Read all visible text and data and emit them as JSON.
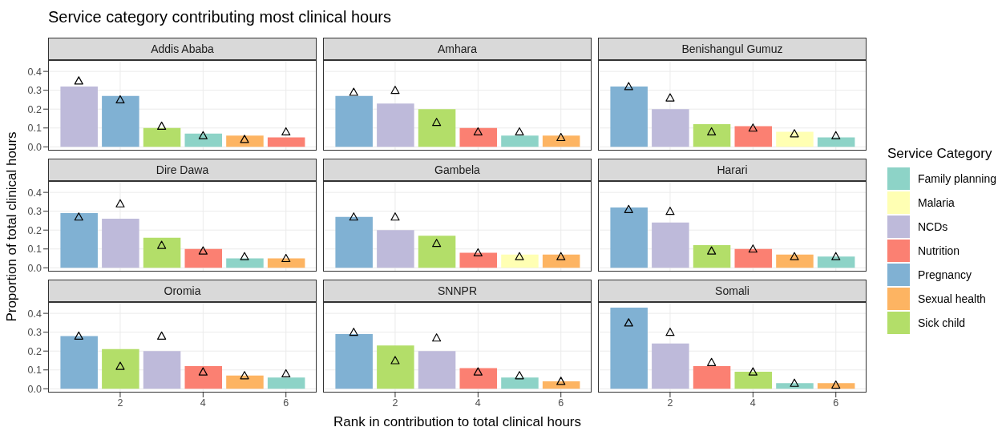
{
  "chart_data": [
    {
      "type": "bar",
      "title": "Service category contributing most clinical hours",
      "subtitle": "Addis Ababa",
      "stacked": true,
      "x": [
        1,
        2,
        3,
        4,
        5,
        6
      ],
      "xlim": [
        0.26,
        6.74
      ],
      "xticks": [
        2,
        4,
        6
      ],
      "ylim": [
        -0.02,
        0.46
      ],
      "yticks": [
        {
          "value": 0,
          "label": "0.0"
        },
        {
          "value": 0.1,
          "label": "0.1"
        },
        {
          "value": 0.2,
          "label": "0.2"
        },
        {
          "value": 0.3,
          "label": "0.3"
        },
        {
          "value": 0.4,
          "label": "0.4"
        }
      ],
      "grid": true,
      "tick_labels": "y",
      "series": [
        {
          "color": "#8dd3c7",
          "values": [
            null,
            null,
            null,
            0.07,
            null,
            null
          ]
        },
        {
          "color": "#ffffb3",
          "values": [
            null,
            null,
            null,
            null,
            null,
            null
          ]
        },
        {
          "color": "#bebada",
          "values": [
            0.32,
            null,
            null,
            null,
            null,
            null
          ]
        },
        {
          "color": "#fb8072",
          "values": [
            null,
            null,
            null,
            null,
            null,
            0.05
          ]
        },
        {
          "color": "#80b1d3",
          "values": [
            null,
            0.27,
            null,
            null,
            null,
            null
          ]
        },
        {
          "color": "#fdb462",
          "values": [
            null,
            null,
            null,
            null,
            0.06,
            null
          ]
        },
        {
          "color": "#b3de69",
          "values": [
            null,
            null,
            0.1,
            null,
            null,
            null
          ]
        },
        {
          "type": "scatter",
          "color": "#000000",
          "marker": "triangle",
          "values": [
            0.35,
            0.25,
            0.11,
            0.06,
            0.04,
            0.08
          ]
        }
      ]
    },
    {
      "type": "bar",
      "subtitle": "Amhara",
      "stacked": true,
      "x": [
        1,
        2,
        3,
        4,
        5,
        6
      ],
      "xlim": [
        0.26,
        6.74
      ],
      "xticks": [
        2,
        4,
        6
      ],
      "ylim": [
        -0.02,
        0.46
      ],
      "yticks": [
        {
          "value": 0,
          "label": null
        },
        {
          "value": 0.1,
          "label": null
        },
        {
          "value": 0.2,
          "label": null
        },
        {
          "value": 0.3,
          "label": null
        },
        {
          "value": 0.4,
          "label": null
        }
      ],
      "grid": true,
      "tick_labels": false,
      "series": [
        {
          "color": "#8dd3c7",
          "values": [
            null,
            null,
            null,
            null,
            0.06,
            null
          ]
        },
        {
          "color": "#ffffb3",
          "values": [
            null,
            null,
            null,
            null,
            null,
            null
          ]
        },
        {
          "color": "#bebada",
          "values": [
            null,
            0.23,
            null,
            null,
            null,
            null
          ]
        },
        {
          "color": "#fb8072",
          "values": [
            null,
            null,
            null,
            0.1,
            null,
            null
          ]
        },
        {
          "color": "#80b1d3",
          "values": [
            0.27,
            null,
            null,
            null,
            null,
            null
          ]
        },
        {
          "color": "#fdb462",
          "values": [
            null,
            null,
            null,
            null,
            null,
            0.06
          ]
        },
        {
          "color": "#b3de69",
          "values": [
            null,
            null,
            0.2,
            null,
            null,
            null
          ]
        },
        {
          "type": "scatter",
          "color": "#000000",
          "marker": "triangle",
          "values": [
            0.29,
            0.3,
            0.13,
            0.08,
            0.08,
            0.05
          ]
        }
      ]
    },
    {
      "type": "bar",
      "subtitle": "Benishangul Gumuz",
      "stacked": true,
      "x": [
        1,
        2,
        3,
        4,
        5,
        6
      ],
      "xlim": [
        0.26,
        6.74
      ],
      "xticks": [
        2,
        4,
        6
      ],
      "ylim": [
        -0.02,
        0.46
      ],
      "yticks": [
        {
          "value": 0,
          "label": null
        },
        {
          "value": 0.1,
          "label": null
        },
        {
          "value": 0.2,
          "label": null
        },
        {
          "value": 0.3,
          "label": null
        },
        {
          "value": 0.4,
          "label": null
        }
      ],
      "grid": true,
      "tick_labels": false,
      "series": [
        {
          "color": "#8dd3c7",
          "values": [
            null,
            null,
            null,
            null,
            null,
            0.05
          ]
        },
        {
          "color": "#ffffb3",
          "values": [
            null,
            null,
            null,
            null,
            0.08,
            null
          ]
        },
        {
          "color": "#bebada",
          "values": [
            null,
            0.2,
            null,
            null,
            null,
            null
          ]
        },
        {
          "color": "#fb8072",
          "values": [
            null,
            null,
            null,
            0.11,
            null,
            null
          ]
        },
        {
          "color": "#80b1d3",
          "values": [
            0.32,
            null,
            null,
            null,
            null,
            null
          ]
        },
        {
          "color": "#fdb462",
          "values": [
            null,
            null,
            null,
            null,
            null,
            null
          ]
        },
        {
          "color": "#b3de69",
          "values": [
            null,
            null,
            0.12,
            null,
            null,
            null
          ]
        },
        {
          "type": "scatter",
          "color": "#000000",
          "marker": "triangle",
          "values": [
            0.32,
            0.26,
            0.08,
            0.1,
            0.07,
            0.06
          ]
        }
      ]
    },
    {
      "type": "bar",
      "subtitle": "Dire Dawa",
      "ylabel": "Proportion of total clinical hours",
      "stacked": true,
      "x": [
        1,
        2,
        3,
        4,
        5,
        6
      ],
      "xlim": [
        0.26,
        6.74
      ],
      "xticks": [
        2,
        4,
        6
      ],
      "ylim": [
        -0.02,
        0.46
      ],
      "yticks": [
        {
          "value": 0,
          "label": "0.0"
        },
        {
          "value": 0.1,
          "label": "0.1"
        },
        {
          "value": 0.2,
          "label": "0.2"
        },
        {
          "value": 0.3,
          "label": "0.3"
        },
        {
          "value": 0.4,
          "label": "0.4"
        }
      ],
      "grid": true,
      "tick_labels": "y",
      "series": [
        {
          "color": "#8dd3c7",
          "values": [
            null,
            null,
            null,
            null,
            0.05,
            null
          ]
        },
        {
          "color": "#ffffb3",
          "values": [
            null,
            null,
            null,
            null,
            null,
            null
          ]
        },
        {
          "color": "#bebada",
          "values": [
            null,
            0.26,
            null,
            null,
            null,
            null
          ]
        },
        {
          "color": "#fb8072",
          "values": [
            null,
            null,
            null,
            0.1,
            null,
            null
          ]
        },
        {
          "color": "#80b1d3",
          "values": [
            0.29,
            null,
            null,
            null,
            null,
            null
          ]
        },
        {
          "color": "#fdb462",
          "values": [
            null,
            null,
            null,
            null,
            null,
            0.05
          ]
        },
        {
          "color": "#b3de69",
          "values": [
            null,
            null,
            0.16,
            null,
            null,
            null
          ]
        },
        {
          "type": "scatter",
          "color": "#000000",
          "marker": "triangle",
          "values": [
            0.27,
            0.34,
            0.12,
            0.09,
            0.06,
            0.05
          ]
        }
      ]
    },
    {
      "type": "bar",
      "subtitle": "Gambela",
      "stacked": true,
      "x": [
        1,
        2,
        3,
        4,
        5,
        6
      ],
      "xlim": [
        0.26,
        6.74
      ],
      "xticks": [
        2,
        4,
        6
      ],
      "ylim": [
        -0.02,
        0.46
      ],
      "yticks": [
        {
          "value": 0,
          "label": null
        },
        {
          "value": 0.1,
          "label": null
        },
        {
          "value": 0.2,
          "label": null
        },
        {
          "value": 0.3,
          "label": null
        },
        {
          "value": 0.4,
          "label": null
        }
      ],
      "grid": true,
      "tick_labels": false,
      "series": [
        {
          "color": "#8dd3c7",
          "values": [
            null,
            null,
            null,
            null,
            null,
            null
          ]
        },
        {
          "color": "#ffffb3",
          "values": [
            null,
            null,
            null,
            null,
            0.07,
            null
          ]
        },
        {
          "color": "#bebada",
          "values": [
            null,
            0.2,
            null,
            null,
            null,
            null
          ]
        },
        {
          "color": "#fb8072",
          "values": [
            null,
            null,
            null,
            0.08,
            null,
            null
          ]
        },
        {
          "color": "#80b1d3",
          "values": [
            0.27,
            null,
            null,
            null,
            null,
            null
          ]
        },
        {
          "color": "#fdb462",
          "values": [
            null,
            null,
            null,
            null,
            null,
            0.07
          ]
        },
        {
          "color": "#b3de69",
          "values": [
            null,
            null,
            0.17,
            null,
            null,
            null
          ]
        },
        {
          "type": "scatter",
          "color": "#000000",
          "marker": "triangle",
          "values": [
            0.27,
            0.27,
            0.13,
            0.08,
            0.06,
            0.06
          ]
        }
      ]
    },
    {
      "type": "bar",
      "subtitle": "Harari",
      "legend": "right",
      "legend_title": "Service Category",
      "stacked": true,
      "x": [
        1,
        2,
        3,
        4,
        5,
        6
      ],
      "xlim": [
        0.26,
        6.74
      ],
      "xticks": [
        2,
        4,
        6
      ],
      "ylim": [
        -0.02,
        0.46
      ],
      "yticks": [
        {
          "value": 0,
          "label": null
        },
        {
          "value": 0.1,
          "label": null
        },
        {
          "value": 0.2,
          "label": null
        },
        {
          "value": 0.3,
          "label": null
        },
        {
          "value": 0.4,
          "label": null
        }
      ],
      "grid": true,
      "tick_labels": false,
      "series": [
        {
          "name": "Family planning",
          "color": "#8dd3c7",
          "values": [
            null,
            null,
            null,
            null,
            null,
            0.06
          ]
        },
        {
          "name": "Malaria",
          "color": "#ffffb3",
          "values": [
            null,
            null,
            null,
            null,
            null,
            null
          ]
        },
        {
          "name": "NCDs",
          "color": "#bebada",
          "values": [
            null,
            0.24,
            null,
            null,
            null,
            null
          ]
        },
        {
          "name": "Nutrition",
          "color": "#fb8072",
          "values": [
            null,
            null,
            null,
            0.1,
            null,
            null
          ]
        },
        {
          "name": "Pregnancy",
          "color": "#80b1d3",
          "values": [
            0.32,
            null,
            null,
            null,
            null,
            null
          ]
        },
        {
          "name": "Sexual health",
          "color": "#fdb462",
          "values": [
            null,
            null,
            null,
            null,
            0.07,
            null
          ]
        },
        {
          "name": "Sick child",
          "color": "#b3de69",
          "values": [
            null,
            null,
            0.12,
            null,
            null,
            null
          ]
        },
        {
          "type": "scatter",
          "color": "#000000",
          "marker": "triangle",
          "values": [
            0.31,
            0.3,
            0.09,
            0.1,
            0.06,
            0.06
          ]
        }
      ]
    },
    {
      "type": "bar",
      "subtitle": "Oromia",
      "stacked": true,
      "x": [
        1,
        2,
        3,
        4,
        5,
        6
      ],
      "xlim": [
        0.26,
        6.74
      ],
      "xticks": [
        2,
        4,
        6
      ],
      "ylim": [
        -0.02,
        0.46
      ],
      "yticks": [
        {
          "value": 0,
          "label": "0.0"
        },
        {
          "value": 0.1,
          "label": "0.1"
        },
        {
          "value": 0.2,
          "label": "0.2"
        },
        {
          "value": 0.3,
          "label": "0.3"
        },
        {
          "value": 0.4,
          "label": "0.4"
        }
      ],
      "grid": true,
      "series": [
        {
          "color": "#8dd3c7",
          "values": [
            null,
            null,
            null,
            null,
            null,
            0.06
          ]
        },
        {
          "color": "#ffffb3",
          "values": [
            null,
            null,
            null,
            null,
            null,
            null
          ]
        },
        {
          "color": "#bebada",
          "values": [
            null,
            null,
            0.2,
            null,
            null,
            null
          ]
        },
        {
          "color": "#fb8072",
          "values": [
            null,
            null,
            null,
            0.12,
            null,
            null
          ]
        },
        {
          "color": "#80b1d3",
          "values": [
            0.28,
            null,
            null,
            null,
            null,
            null
          ]
        },
        {
          "color": "#fdb462",
          "values": [
            null,
            null,
            null,
            null,
            0.07,
            null
          ]
        },
        {
          "color": "#b3de69",
          "values": [
            null,
            0.21,
            null,
            null,
            null,
            null
          ]
        },
        {
          "type": "scatter",
          "color": "#000000",
          "marker": "triangle",
          "values": [
            0.28,
            0.12,
            0.28,
            0.09,
            0.07,
            0.08
          ]
        }
      ]
    },
    {
      "type": "bar",
      "subtitle": "SNNPR",
      "xlabel": "Rank in contribution to total clinical hours",
      "stacked": true,
      "x": [
        1,
        2,
        3,
        4,
        5,
        6
      ],
      "xlim": [
        0.26,
        6.74
      ],
      "xticks": [
        2,
        4,
        6
      ],
      "ylim": [
        -0.02,
        0.46
      ],
      "yticks": [
        {
          "value": 0,
          "label": null
        },
        {
          "value": 0.1,
          "label": null
        },
        {
          "value": 0.2,
          "label": null
        },
        {
          "value": 0.3,
          "label": null
        },
        {
          "value": 0.4,
          "label": null
        }
      ],
      "grid": true,
      "tick_labels": "x",
      "series": [
        {
          "color": "#8dd3c7",
          "values": [
            null,
            null,
            null,
            null,
            0.06,
            null
          ]
        },
        {
          "color": "#ffffb3",
          "values": [
            null,
            null,
            null,
            null,
            null,
            null
          ]
        },
        {
          "color": "#bebada",
          "values": [
            null,
            null,
            0.2,
            null,
            null,
            null
          ]
        },
        {
          "color": "#fb8072",
          "values": [
            null,
            null,
            null,
            0.11,
            null,
            null
          ]
        },
        {
          "color": "#80b1d3",
          "values": [
            0.29,
            null,
            null,
            null,
            null,
            null
          ]
        },
        {
          "color": "#fdb462",
          "values": [
            null,
            null,
            null,
            null,
            null,
            0.04
          ]
        },
        {
          "color": "#b3de69",
          "values": [
            null,
            0.23,
            null,
            null,
            null,
            null
          ]
        },
        {
          "type": "scatter",
          "color": "#000000",
          "marker": "triangle",
          "values": [
            0.3,
            0.15,
            0.27,
            0.09,
            0.07,
            0.04
          ]
        }
      ]
    },
    {
      "type": "bar",
      "subtitle": "Somali",
      "stacked": true,
      "x": [
        1,
        2,
        3,
        4,
        5,
        6
      ],
      "xlim": [
        0.26,
        6.74
      ],
      "xticks": [
        2,
        4,
        6
      ],
      "ylim": [
        -0.02,
        0.46
      ],
      "yticks": [
        {
          "value": 0,
          "label": null
        },
        {
          "value": 0.1,
          "label": null
        },
        {
          "value": 0.2,
          "label": null
        },
        {
          "value": 0.3,
          "label": null
        },
        {
          "value": 0.4,
          "label": null
        }
      ],
      "grid": true,
      "tick_labels": "x",
      "series": [
        {
          "color": "#8dd3c7",
          "values": [
            null,
            null,
            null,
            null,
            0.03,
            null
          ]
        },
        {
          "color": "#ffffb3",
          "values": [
            null,
            null,
            null,
            null,
            null,
            null
          ]
        },
        {
          "color": "#bebada",
          "values": [
            null,
            0.24,
            null,
            null,
            null,
            null
          ]
        },
        {
          "color": "#fb8072",
          "values": [
            null,
            null,
            0.12,
            null,
            null,
            null
          ]
        },
        {
          "color": "#80b1d3",
          "values": [
            0.43,
            null,
            null,
            null,
            null,
            null
          ]
        },
        {
          "color": "#fdb462",
          "values": [
            null,
            null,
            null,
            null,
            null,
            0.03
          ]
        },
        {
          "color": "#b3de69",
          "values": [
            null,
            null,
            null,
            0.09,
            null,
            null
          ]
        },
        {
          "type": "scatter",
          "color": "#000000",
          "marker": "triangle",
          "values": [
            0.35,
            0.3,
            0.14,
            0.09,
            0.03,
            0.02
          ]
        }
      ]
    }
  ]
}
